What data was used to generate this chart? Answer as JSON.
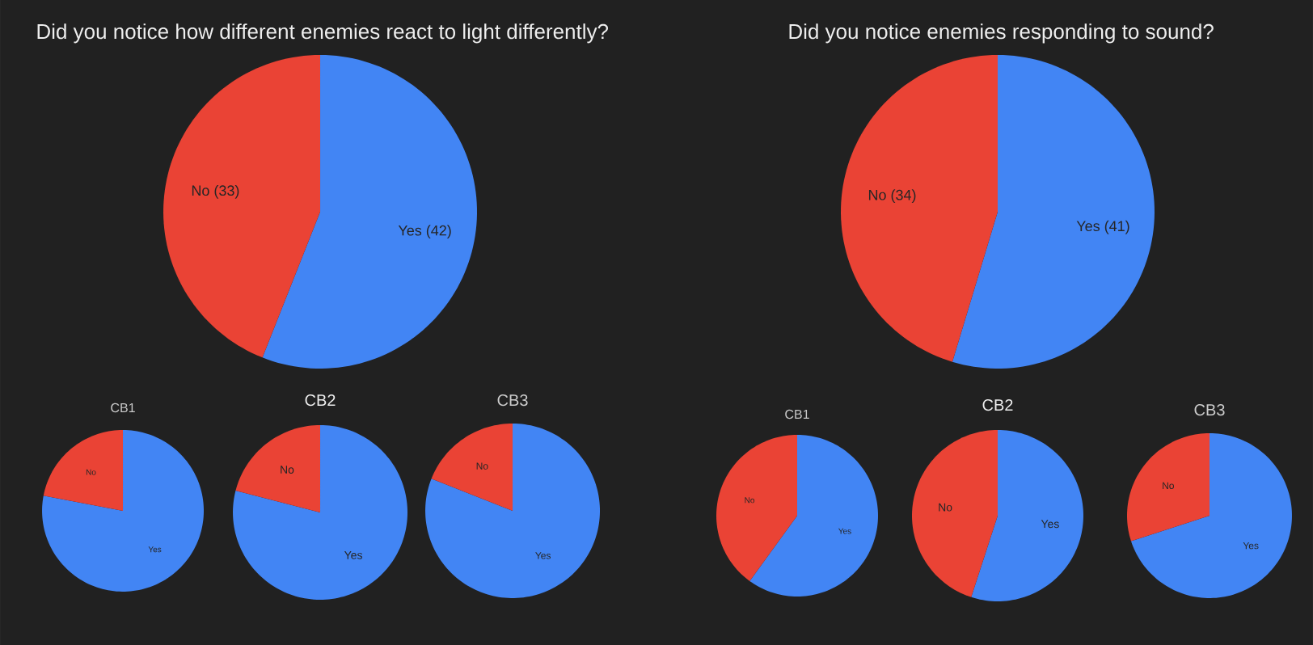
{
  "chart_data": [
    {
      "type": "pie",
      "title": "Did you notice how different enemies react to light differently?",
      "categories": [
        "Yes",
        "No"
      ],
      "values": [
        42,
        33
      ],
      "value_labels": [
        "(42)",
        "(33)"
      ],
      "colors": [
        "#4285f4",
        "#ea4335"
      ]
    },
    {
      "type": "pie",
      "title": "CB1",
      "categories": [
        "Yes",
        "No"
      ],
      "values": [
        78,
        22
      ],
      "colors": [
        "#4285f4",
        "#ea4335"
      ]
    },
    {
      "type": "pie",
      "title": "CB2",
      "categories": [
        "Yes",
        "No"
      ],
      "values": [
        79,
        21
      ],
      "colors": [
        "#4285f4",
        "#ea4335"
      ]
    },
    {
      "type": "pie",
      "title": "CB3",
      "categories": [
        "Yes",
        "No"
      ],
      "values": [
        81,
        19
      ],
      "colors": [
        "#4285f4",
        "#ea4335"
      ]
    },
    {
      "type": "pie",
      "title": "Did you notice enemies responding to sound?",
      "categories": [
        "Yes",
        "No"
      ],
      "values": [
        41,
        34
      ],
      "value_labels": [
        "(41)",
        "(34)"
      ],
      "colors": [
        "#4285f4",
        "#ea4335"
      ]
    },
    {
      "type": "pie",
      "title": "CB1",
      "categories": [
        "Yes",
        "No"
      ],
      "values": [
        60,
        40
      ],
      "colors": [
        "#4285f4",
        "#ea4335"
      ]
    },
    {
      "type": "pie",
      "title": "CB2",
      "categories": [
        "Yes",
        "No"
      ],
      "values": [
        55,
        45
      ],
      "colors": [
        "#4285f4",
        "#ea4335"
      ]
    },
    {
      "type": "pie",
      "title": "CB3",
      "categories": [
        "Yes",
        "No"
      ],
      "values": [
        70,
        30
      ],
      "colors": [
        "#4285f4",
        "#ea4335"
      ]
    }
  ]
}
